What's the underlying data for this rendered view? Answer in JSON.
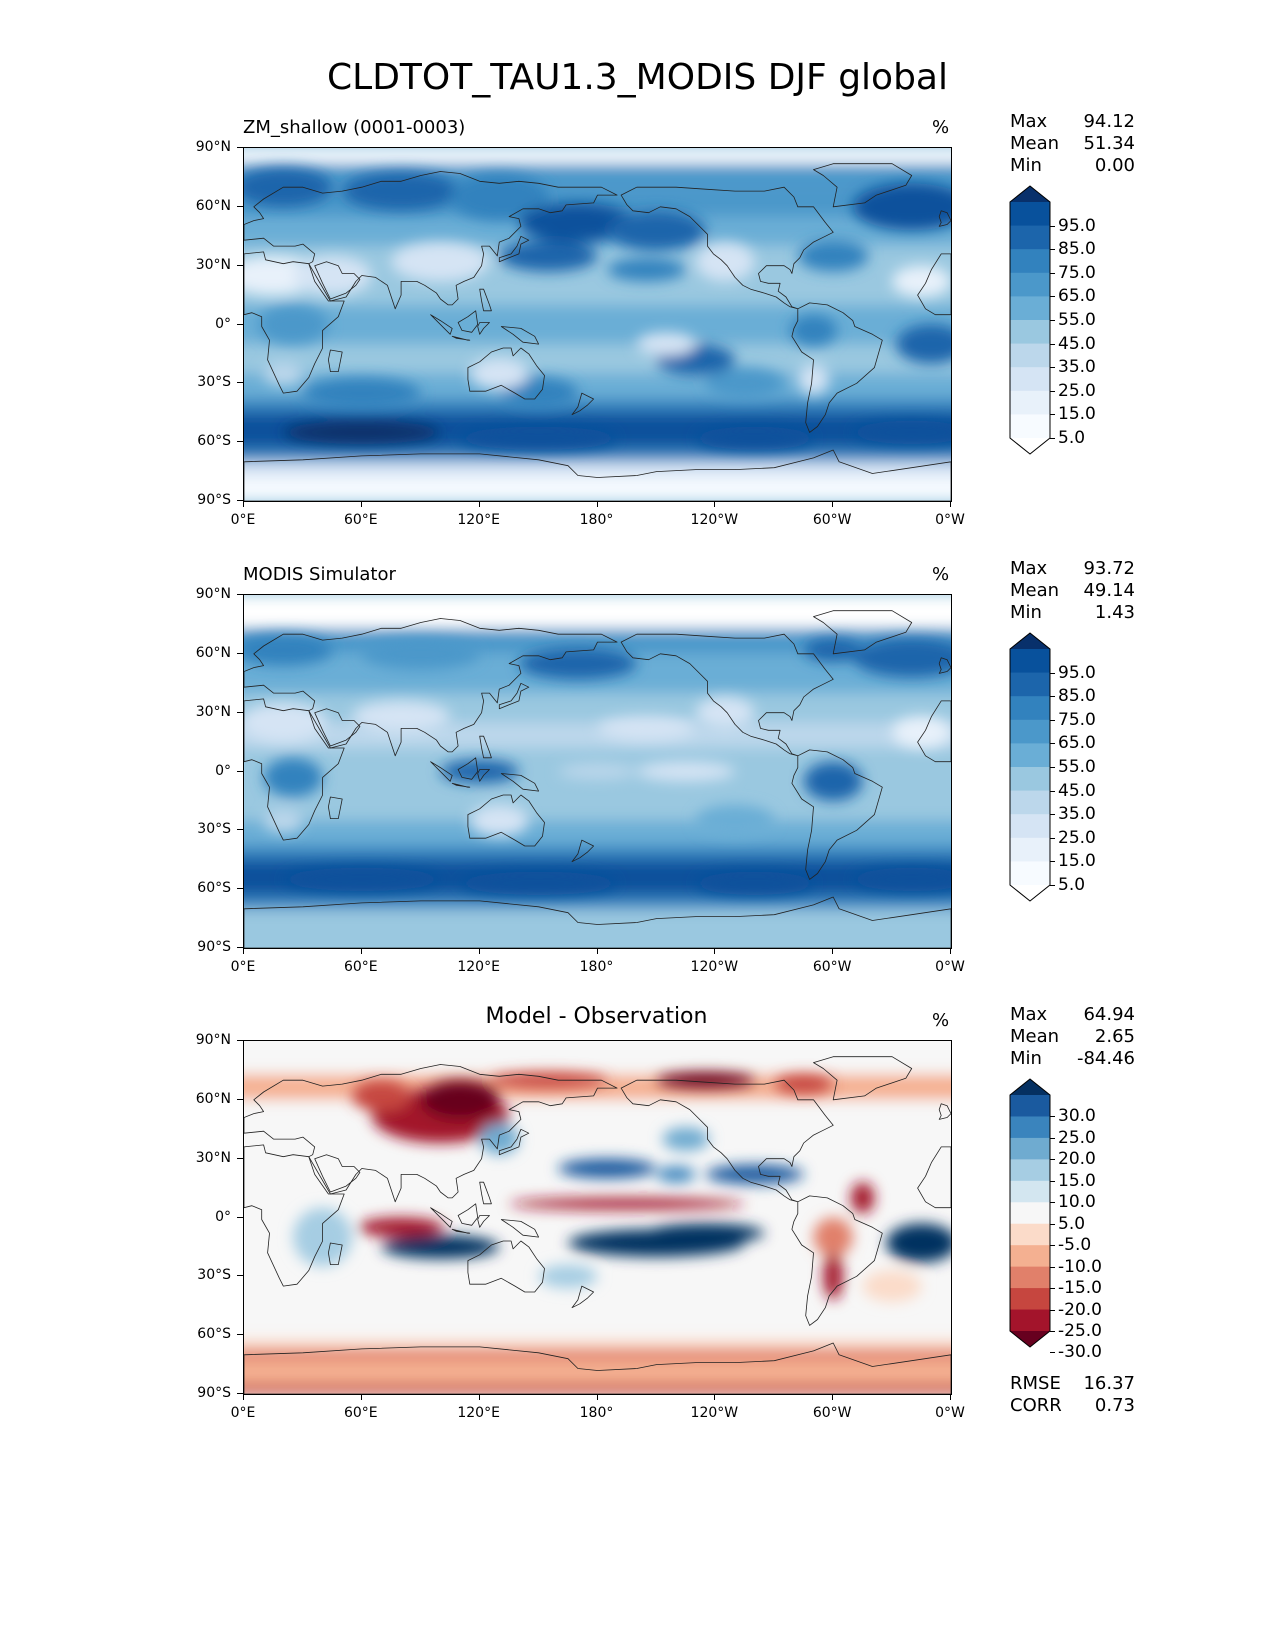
{
  "title": "CLDTOT_TAU1.3_MODIS DJF global",
  "x_ticks": [
    "0°E",
    "60°E",
    "120°E",
    "180°",
    "120°W",
    "60°W",
    "0°W"
  ],
  "y_ticks": [
    "90°N",
    "60°N",
    "30°N",
    "0°",
    "30°S",
    "60°S",
    "90°S"
  ],
  "panels": [
    {
      "title": "ZM_shallow (0001-0003)",
      "unit": "%",
      "stats": [
        [
          "Max",
          "94.12"
        ],
        [
          "Mean",
          "51.34"
        ],
        [
          "Min",
          "0.00"
        ]
      ],
      "colorbar": {
        "labels": [
          "95.0",
          "85.0",
          "75.0",
          "65.0",
          "55.0",
          "45.0",
          "35.0",
          "25.0",
          "15.0",
          "5.0"
        ],
        "colors": [
          "#08306b",
          "#08519c",
          "#1c65ab",
          "#3282be",
          "#4b98ca",
          "#6aaed6",
          "#9ac8e0",
          "#bcd7eb",
          "#d5e4f4",
          "#e8f1fa",
          "#f7fbff",
          "#ffffff"
        ]
      }
    },
    {
      "title": "MODIS Simulator",
      "unit": "%",
      "stats": [
        [
          "Max",
          "93.72"
        ],
        [
          "Mean",
          "49.14"
        ],
        [
          "Min",
          "1.43"
        ]
      ],
      "colorbar": {
        "labels": [
          "95.0",
          "85.0",
          "75.0",
          "65.0",
          "55.0",
          "45.0",
          "35.0",
          "25.0",
          "15.0",
          "5.0"
        ],
        "colors": [
          "#08306b",
          "#08519c",
          "#1c65ab",
          "#3282be",
          "#4b98ca",
          "#6aaed6",
          "#9ac8e0",
          "#bcd7eb",
          "#d5e4f4",
          "#e8f1fa",
          "#f7fbff",
          "#ffffff"
        ]
      }
    },
    {
      "title": "Model - Observation",
      "unit": "%",
      "stats": [
        [
          "Max",
          "64.94"
        ],
        [
          "Mean",
          "2.65"
        ],
        [
          "Min",
          "-84.46"
        ]
      ],
      "extra_stats": [
        [
          "RMSE",
          "16.37"
        ],
        [
          "CORR",
          "0.73"
        ]
      ],
      "colorbar": {
        "labels": [
          "30.0",
          "25.0",
          "20.0",
          "15.0",
          "10.0",
          "5.0",
          "-5.0",
          "-10.0",
          "-15.0",
          "-20.0",
          "-25.0",
          "-30.0"
        ],
        "colors": [
          "#053061",
          "#1a5a9f",
          "#3a84bd",
          "#6fabd0",
          "#a6cde3",
          "#d3e6f0",
          "#f7f7f7",
          "#fbdbc9",
          "#f4b091",
          "#e1806a",
          "#c6463f",
          "#a3142b",
          "#67001f"
        ]
      }
    }
  ]
}
